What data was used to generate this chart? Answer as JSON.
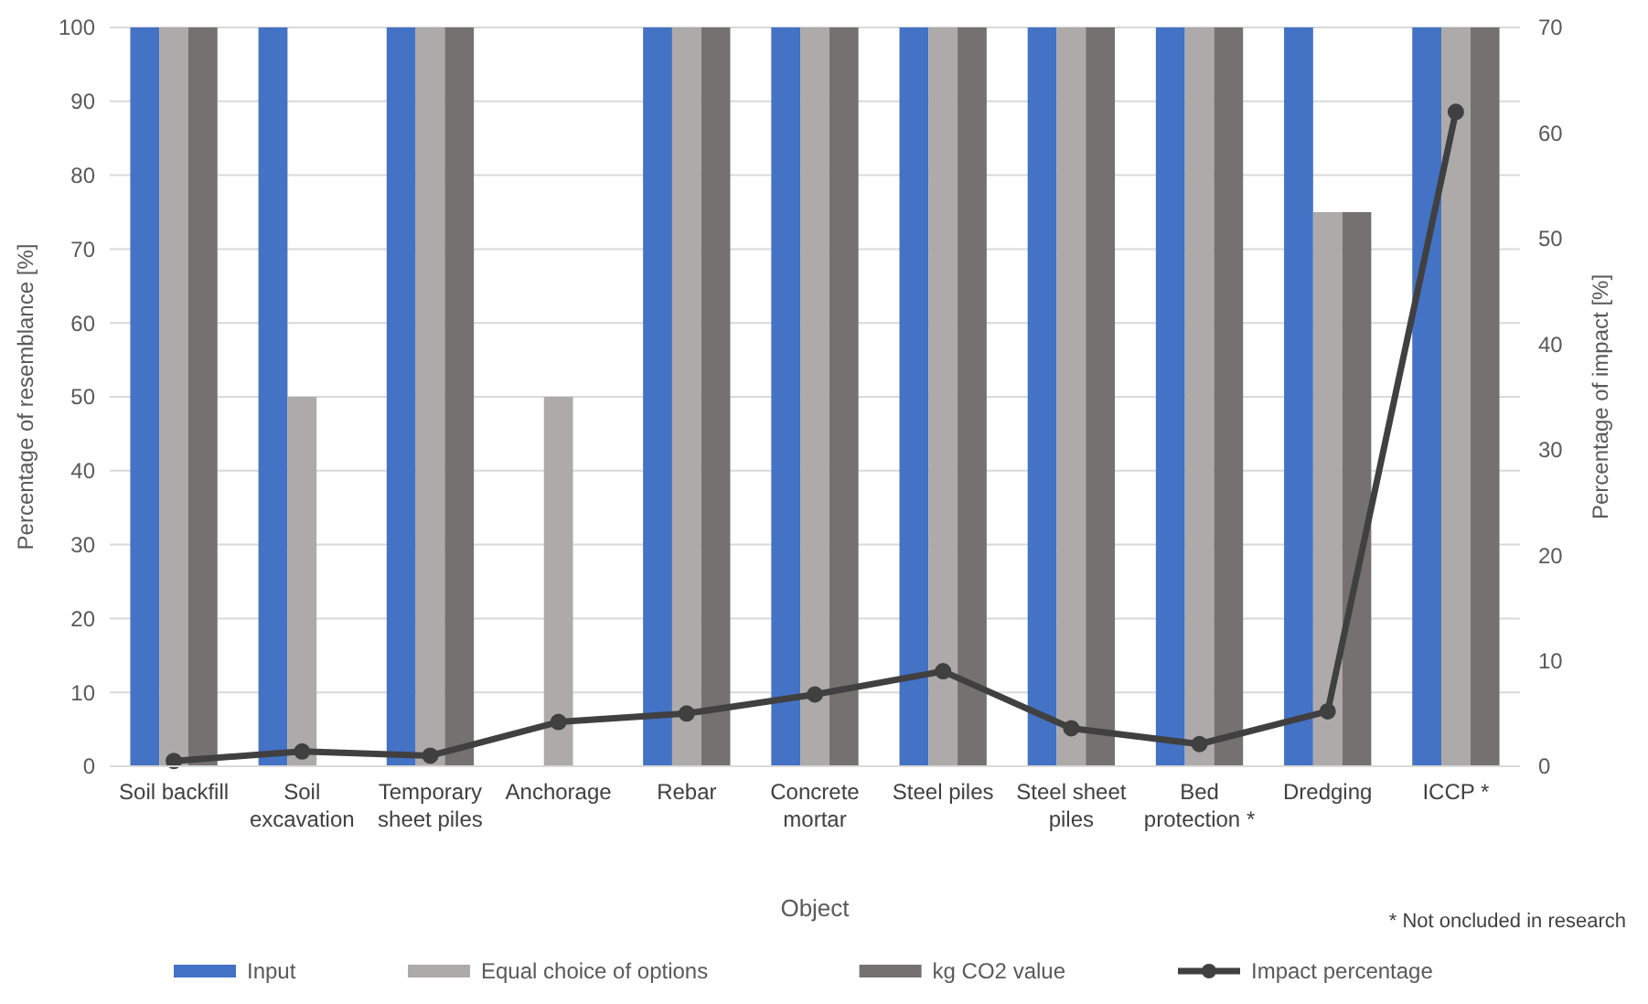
{
  "chart_data": {
    "type": "bar",
    "xlabel": "Object",
    "ylabel": "Percentage of resemblance [%]",
    "y2label": "Percentage of impact [%]",
    "categories": [
      "Soil backfill",
      "Soil excavation",
      "Temporary sheet piles",
      "Anchorage",
      "Rebar",
      "Concrete mortar",
      "Steel piles",
      "Steel sheet piles",
      "Bed protection *",
      "Dredging",
      "ICCP *"
    ],
    "series": [
      {
        "name": "Input",
        "color": "#4472c4",
        "values": [
          100,
          100,
          100,
          0,
          100,
          100,
          100,
          100,
          100,
          100,
          100
        ]
      },
      {
        "name": "Equal choice of options",
        "color": "#aeaaaa",
        "values": [
          100,
          50,
          100,
          50,
          100,
          100,
          100,
          100,
          100,
          75,
          100
        ]
      },
      {
        "name": "kg CO2 value",
        "color": "#767171",
        "values": [
          100,
          0,
          100,
          0,
          100,
          100,
          100,
          100,
          100,
          75,
          100
        ]
      },
      {
        "name": "Impact percentage",
        "type": "line",
        "axis": "y2",
        "color": "#404040",
        "marker": "circle",
        "values": [
          0.5,
          1.4,
          1.0,
          4.2,
          5.0,
          6.8,
          9.0,
          3.6,
          2.1,
          5.2,
          62
        ]
      }
    ],
    "ylim": [
      0,
      100
    ],
    "yticks": [
      0,
      10,
      20,
      30,
      40,
      50,
      60,
      70,
      80,
      90,
      100
    ],
    "y2lim": [
      0,
      70
    ],
    "y2ticks": [
      0,
      10,
      20,
      30,
      40,
      50,
      60,
      70
    ],
    "grid": "y",
    "legend": "bottom",
    "annotations": [
      "* Not oncluded in research"
    ]
  }
}
